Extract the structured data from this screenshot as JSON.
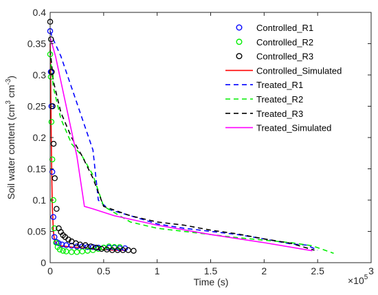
{
  "chart_data": {
    "type": "scatter",
    "xlabel": "Time (s)",
    "ylabel_main": "Soil water content (cm",
    "ylabel_sup1": "3",
    "ylabel_mid": " cm",
    "ylabel_sup2": "-3",
    "ylabel_end": ")",
    "x_exponent_base": "×10",
    "x_exponent": "5",
    "xlim": [
      0,
      300000
    ],
    "ylim": [
      0,
      0.4
    ],
    "x_ticks": [
      0,
      50000,
      100000,
      150000,
      200000,
      250000,
      300000
    ],
    "x_tick_labels": [
      "0",
      "0.5",
      "1",
      "1.5",
      "2",
      "2.5",
      "3"
    ],
    "y_ticks": [
      0,
      0.05,
      0.1,
      0.15,
      0.2,
      0.25,
      0.3,
      0.35,
      0.4
    ],
    "y_tick_labels": [
      "0",
      "0.05",
      "0.1",
      "0.15",
      "0.2",
      "0.25",
      "0.3",
      "0.35",
      "0.4"
    ],
    "grid": false,
    "legend_position": "top-right",
    "series": [
      {
        "name": "Controlled_R1",
        "kind": "markers",
        "color": "#0000ff",
        "x": [
          0,
          600,
          1200,
          2000,
          3000,
          4000,
          6000,
          8000,
          11000,
          15000,
          20000,
          25000,
          30000,
          35000,
          40000,
          45000,
          50000,
          55000,
          60000,
          65000,
          70000
        ],
        "y": [
          0.37,
          0.305,
          0.25,
          0.145,
          0.073,
          0.041,
          0.033,
          0.031,
          0.029,
          0.028,
          0.027,
          0.026,
          0.026,
          0.025,
          0.025,
          0.024,
          0.024,
          0.024,
          0.024,
          0.023,
          0.023
        ]
      },
      {
        "name": "Controlled_R2",
        "kind": "markers",
        "color": "#00ee00",
        "x": [
          0,
          600,
          1200,
          2000,
          3000,
          4000,
          5500,
          7000,
          9000,
          12000,
          15000,
          20000,
          25000,
          30000,
          35000,
          40000,
          45000,
          50000,
          55000,
          60000,
          65000
        ],
        "y": [
          0.333,
          0.297,
          0.225,
          0.165,
          0.1,
          0.055,
          0.032,
          0.025,
          0.021,
          0.019,
          0.018,
          0.017,
          0.017,
          0.018,
          0.019,
          0.02,
          0.022,
          0.024,
          0.026,
          0.025,
          0.025
        ]
      },
      {
        "name": "Controlled_R3",
        "kind": "markers",
        "color": "#000000",
        "x": [
          0,
          800,
          1500,
          2300,
          3200,
          4300,
          6000,
          8000,
          10000,
          12000,
          14000,
          17000,
          20000,
          24000,
          28000,
          33000,
          38000,
          43000,
          48000,
          53000,
          58000,
          63000,
          68000,
          73000,
          78000
        ],
        "y": [
          0.385,
          0.357,
          0.305,
          0.25,
          0.19,
          0.135,
          0.086,
          0.055,
          0.049,
          0.044,
          0.041,
          0.037,
          0.034,
          0.031,
          0.029,
          0.028,
          0.026,
          0.024,
          0.022,
          0.021,
          0.02,
          0.02,
          0.02,
          0.02,
          0.019
        ]
      },
      {
        "name": "Controlled_Simulated",
        "kind": "line",
        "dash": "solid",
        "color": "#ff0000",
        "x": [
          0,
          500,
          1000,
          1500,
          2000,
          3000,
          4000,
          6000,
          10000,
          20000,
          40000,
          60000,
          70000
        ],
        "y": [
          0.35,
          0.29,
          0.2,
          0.14,
          0.09,
          0.05,
          0.036,
          0.03,
          0.027,
          0.025,
          0.022,
          0.02,
          0.02
        ]
      },
      {
        "name": "Treated_R1",
        "kind": "line",
        "dash": "dashed",
        "color": "#0000ff",
        "x": [
          0,
          2000,
          10000,
          20000,
          30000,
          40000,
          45000,
          55000,
          75000,
          100000,
          125000,
          150000,
          175000,
          200000,
          225000,
          240000,
          250000
        ],
        "y": [
          0.37,
          0.36,
          0.33,
          0.28,
          0.23,
          0.18,
          0.1,
          0.085,
          0.075,
          0.062,
          0.055,
          0.05,
          0.045,
          0.038,
          0.03,
          0.028,
          0.02
        ]
      },
      {
        "name": "Treated_R2",
        "kind": "line",
        "dash": "dashed",
        "color": "#00ee00",
        "x": [
          0,
          3000,
          10000,
          20000,
          30000,
          40000,
          50000,
          75000,
          100000,
          125000,
          150000,
          175000,
          200000,
          225000,
          245000,
          265000
        ],
        "y": [
          0.33,
          0.28,
          0.23,
          0.19,
          0.17,
          0.14,
          0.09,
          0.065,
          0.055,
          0.05,
          0.045,
          0.04,
          0.036,
          0.032,
          0.027,
          0.015
        ]
      },
      {
        "name": "Treated_R3",
        "kind": "line",
        "dash": "dashed",
        "color": "#000000",
        "x": [
          0,
          3000,
          10000,
          20000,
          30000,
          40000,
          50000,
          75000,
          100000,
          125000,
          150000,
          175000,
          200000,
          225000,
          247000
        ],
        "y": [
          0.34,
          0.29,
          0.24,
          0.2,
          0.17,
          0.135,
          0.09,
          0.075,
          0.065,
          0.06,
          0.052,
          0.046,
          0.038,
          0.031,
          0.02
        ]
      },
      {
        "name": "Treated_Simulated",
        "kind": "line",
        "dash": "solid",
        "color": "#ff00ff",
        "x": [
          0,
          5000,
          15000,
          25000,
          32000,
          40000,
          60000,
          100000,
          150000,
          200000,
          245000
        ],
        "y": [
          0.36,
          0.33,
          0.25,
          0.17,
          0.09,
          0.086,
          0.075,
          0.06,
          0.045,
          0.032,
          0.019
        ]
      }
    ]
  }
}
